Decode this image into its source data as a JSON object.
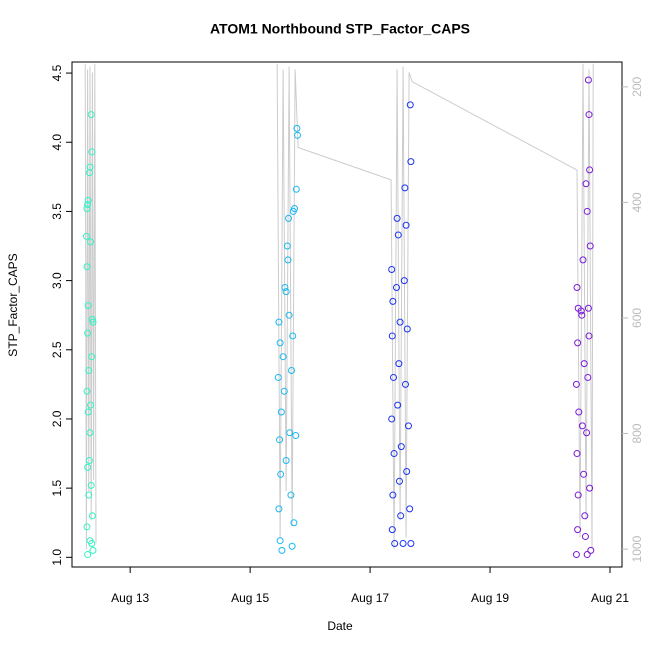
{
  "chart_data": {
    "type": "scatter",
    "title": "ATOM1 Northbound STP_Factor_CAPS",
    "x_label": "Date",
    "y_label": "STP_Factor_CAPS",
    "xlim": [
      12.03,
      21.2
    ],
    "xticks": [
      {
        "value": 13,
        "label": "Aug 13"
      },
      {
        "value": 15,
        "label": "Aug 15"
      },
      {
        "value": 17,
        "label": "Aug 17"
      },
      {
        "value": 19,
        "label": "Aug 19"
      },
      {
        "value": 21,
        "label": "Aug 21"
      }
    ],
    "ylim": [
      0.93,
      4.58
    ],
    "yticks": [
      {
        "value": 1,
        "label": "1.0"
      },
      1.5,
      {
        "value": 2,
        "label": "2.0"
      },
      2.5,
      {
        "value": 3,
        "label": "3.0"
      },
      3.5,
      {
        "value": 4,
        "label": "4.0"
      },
      4.5
    ],
    "y2lim": [
      1031,
      157
    ],
    "y2ticks": [
      200,
      400,
      600,
      800,
      1000
    ],
    "y2_color": "#bbbbbb",
    "series": [
      {
        "color": "#33f2c4",
        "x": [
          12.28,
          12.29,
          12.3,
          12.27,
          12.28,
          12.3,
          12.32,
          12.33,
          12.35,
          12.36,
          12.34,
          12.29,
          12.31,
          12.37,
          12.38,
          12.36,
          12.28,
          12.3,
          12.33,
          12.29,
          12.35,
          12.31,
          12.37,
          12.28,
          12.33,
          12.36,
          12.29,
          12.38,
          12.32,
          12.34
        ],
        "values": [
          3.52,
          3.55,
          3.58,
          3.32,
          3.1,
          2.82,
          3.78,
          3.82,
          4.2,
          3.93,
          3.28,
          2.62,
          2.35,
          2.72,
          2.7,
          2.45,
          2.2,
          2.05,
          1.9,
          1.65,
          1.52,
          1.45,
          1.3,
          1.22,
          1.12,
          1.1,
          1.02,
          1.05,
          1.7,
          2.1
        ]
      },
      {
        "color": "#1ab8f0",
        "x": [
          15.48,
          15.5,
          15.47,
          15.52,
          15.49,
          15.51,
          15.48,
          15.5,
          15.53,
          15.58,
          15.6,
          15.62,
          15.63,
          15.57,
          15.65,
          15.66,
          15.68,
          15.7,
          15.72,
          15.74,
          15.71,
          15.76,
          15.78,
          15.79,
          15.77,
          15.73,
          15.6,
          15.55,
          15.64,
          15.69
        ],
        "values": [
          2.7,
          2.55,
          2.3,
          2.05,
          1.85,
          1.6,
          1.35,
          1.12,
          1.05,
          2.95,
          2.92,
          3.25,
          3.15,
          2.2,
          2.75,
          1.9,
          1.45,
          1.08,
          3.5,
          3.52,
          2.6,
          1.88,
          4.1,
          4.05,
          3.66,
          1.25,
          1.7,
          2.45,
          3.45,
          2.35
        ]
      },
      {
        "color": "#1a33f0",
        "x": [
          17.36,
          17.38,
          17.37,
          17.39,
          17.36,
          17.4,
          17.38,
          17.37,
          17.41,
          17.45,
          17.47,
          17.44,
          17.5,
          17.48,
          17.46,
          17.52,
          17.49,
          17.51,
          17.55,
          17.58,
          17.6,
          17.57,
          17.62,
          17.59,
          17.64,
          17.61,
          17.66,
          17.68,
          17.67,
          17.68
        ],
        "values": [
          3.08,
          2.85,
          2.6,
          2.3,
          2.0,
          1.75,
          1.45,
          1.2,
          1.1,
          3.45,
          3.33,
          2.95,
          2.7,
          2.4,
          2.1,
          1.8,
          1.55,
          1.3,
          1.1,
          3.67,
          3.4,
          3.0,
          2.65,
          2.25,
          1.95,
          1.62,
          1.35,
          1.1,
          4.27,
          3.86
        ]
      },
      {
        "color": "#7a1ad8",
        "x": [
          20.45,
          20.47,
          20.46,
          20.44,
          20.48,
          20.45,
          20.47,
          20.46,
          20.44,
          20.52,
          20.53,
          20.55,
          20.57,
          20.54,
          20.56,
          20.58,
          20.6,
          20.62,
          20.61,
          20.63,
          20.64,
          20.65,
          20.66,
          20.67,
          20.64,
          20.66,
          20.68,
          20.62,
          20.59,
          20.65
        ],
        "values": [
          2.95,
          2.8,
          2.55,
          2.25,
          2.05,
          1.75,
          1.45,
          1.2,
          1.02,
          2.78,
          2.75,
          3.15,
          2.4,
          1.95,
          1.6,
          1.3,
          3.7,
          3.5,
          1.9,
          2.3,
          4.45,
          4.2,
          3.8,
          3.25,
          2.8,
          1.5,
          1.05,
          1.02,
          1.15,
          2.6
        ]
      },
      {
        "type": "line",
        "axis": "y2",
        "color": "#cccccc",
        "x": [
          12.25,
          12.27,
          12.29,
          12.31,
          12.33,
          12.35,
          12.37,
          12.39,
          12.41,
          12.43,
          13.0,
          15.45,
          15.5,
          15.55,
          15.6,
          15.65,
          15.7,
          15.75,
          15.8,
          17.35,
          17.4,
          17.45,
          17.5,
          17.55,
          17.6,
          17.65,
          17.7,
          20.45,
          20.5,
          20.55,
          20.6,
          20.65,
          20.7,
          20.72
        ],
        "values": [
          160,
          1000,
          170,
          900,
          165,
          950,
          175,
          880,
          160,
          990,
          null,
          160,
          980,
          170,
          900,
          165,
          960,
          170,
          305,
          361,
          1000,
          170,
          950,
          165,
          980,
          175,
          191,
          344,
          980,
          160,
          950,
          170,
          1000,
          160
        ]
      }
    ]
  }
}
